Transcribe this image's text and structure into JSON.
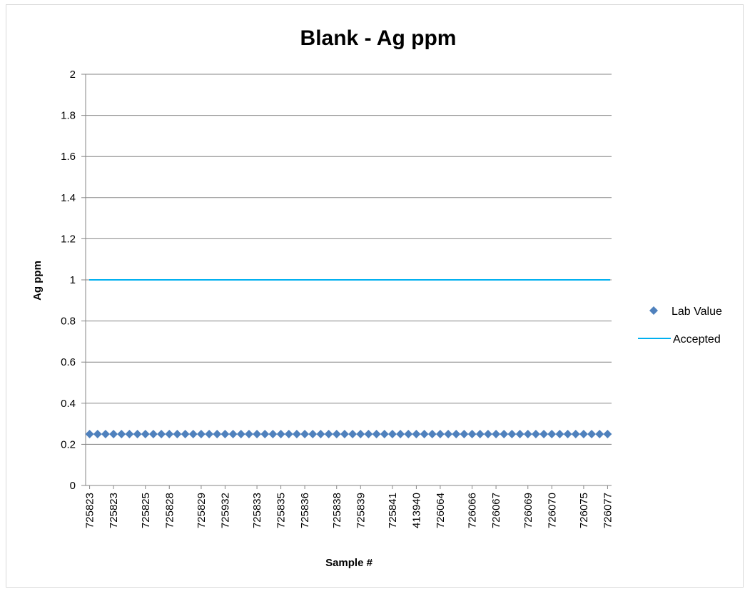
{
  "chart_data": {
    "type": "scatter",
    "title": "Blank - Ag ppm",
    "xlabel": "Sample #",
    "ylabel": "Ag ppm",
    "ylim": [
      0,
      2
    ],
    "y_ticks": [
      "0",
      "0.2",
      "0.4",
      "0.6",
      "0.8",
      "1",
      "1.2",
      "1.4",
      "1.6",
      "1.8",
      "2"
    ],
    "point_count": 66,
    "x_tick_labels": [
      "725823",
      "725823",
      "725825",
      "725828",
      "725829",
      "725932",
      "725833",
      "725835",
      "725836",
      "725838",
      "725839",
      "725841",
      "413940",
      "726064",
      "726066",
      "726067",
      "726069",
      "726070",
      "726075",
      "726077"
    ],
    "series": [
      {
        "name": "Lab Value",
        "kind": "markers",
        "marker": "diamond",
        "color": "#4f81bd",
        "value": 0.25
      },
      {
        "name": "Accepted",
        "kind": "line",
        "color": "#00b0f0",
        "value": 1
      }
    ],
    "grid": true,
    "legend": "right"
  }
}
